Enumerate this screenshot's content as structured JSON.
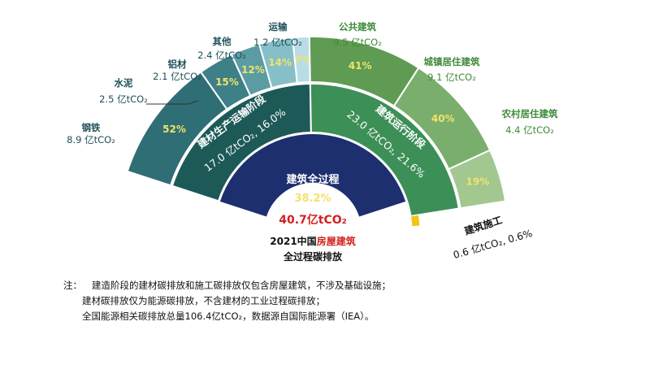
{
  "chart_data": {
    "type": "sunburst",
    "center": {
      "label": "建筑全过程",
      "share": "38.2%",
      "total": "40.7亿tCO₂",
      "caption_line1_a": "2021中国",
      "caption_line1_b": "房屋建筑",
      "caption_line2": "全过程碳排放"
    },
    "stages": [
      {
        "name": "建材生产运输阶段",
        "value_text": "17.0 亿tCO₂, 16.0%",
        "value": 17.0,
        "share": 16.0,
        "color": "#1d5a57"
      },
      {
        "name": "建筑运行阶段",
        "value_text": "23.0 亿tCO₂, 21.6%",
        "value": 23.0,
        "share": 21.6,
        "color": "#3c8f57"
      },
      {
        "name": "建筑施工",
        "value_text": "0.6 亿tCO₂, 0.6%",
        "value": 0.6,
        "share": 0.6,
        "color": "#f0c419"
      }
    ],
    "segments": [
      {
        "name": "钢铁",
        "value_text": "8.9 亿tCO₂",
        "value": 8.9,
        "pct": "52%",
        "stage": "建材生产运输阶段",
        "color": "#2f6e74"
      },
      {
        "name": "水泥",
        "value_text": "2.5 亿tCO₂",
        "value": 2.5,
        "pct": "15%",
        "stage": "建材生产运输阶段",
        "color": "#3d8088"
      },
      {
        "name": "铝材",
        "value_text": "2.1 亿tCO₂",
        "value": 2.1,
        "pct": "12%",
        "stage": "建材生产运输阶段",
        "color": "#5b9ca3"
      },
      {
        "name": "其他",
        "value_text": "2.4 亿tCO₂",
        "value": 2.4,
        "pct": "14%",
        "stage": "建材生产运输阶段",
        "color": "#86bfc8"
      },
      {
        "name": "运输",
        "value_text": "1.2 亿tCO₂",
        "value": 1.2,
        "pct": "7%",
        "stage": "建材生产运输阶段",
        "color": "#b8dde6"
      },
      {
        "name": "公共建筑",
        "value_text": "9.5 亿tCO₂",
        "value": 9.5,
        "pct": "41%",
        "stage": "建筑运行阶段",
        "color": "#5f9b52"
      },
      {
        "name": "城镇居住建筑",
        "value_text": "9.1 亿tCO₂",
        "value": 9.1,
        "pct": "40%",
        "stage": "建筑运行阶段",
        "color": "#7aae6d"
      },
      {
        "name": "农村居住建筑",
        "value_text": "4.4 亿tCO₂",
        "value": 4.4,
        "pct": "19%",
        "stage": "建筑运行阶段",
        "color": "#a2c890"
      }
    ],
    "label_colors": {
      "materials": "#1d4f57",
      "operation": "#3f8a3a",
      "total": "#d42020"
    }
  },
  "notes": {
    "prefix": "注：",
    "line1": "建造阶段的建材碳排放和施工碳排放仅包含房屋建筑，不涉及基础设施；",
    "line2": "建材碳排放仅为能源碳排放，不含建材的工业过程碳排放；",
    "line3": "全国能源相关碳排放总量106.4亿tCO₂，数据源自国际能源署（IEA）。"
  }
}
